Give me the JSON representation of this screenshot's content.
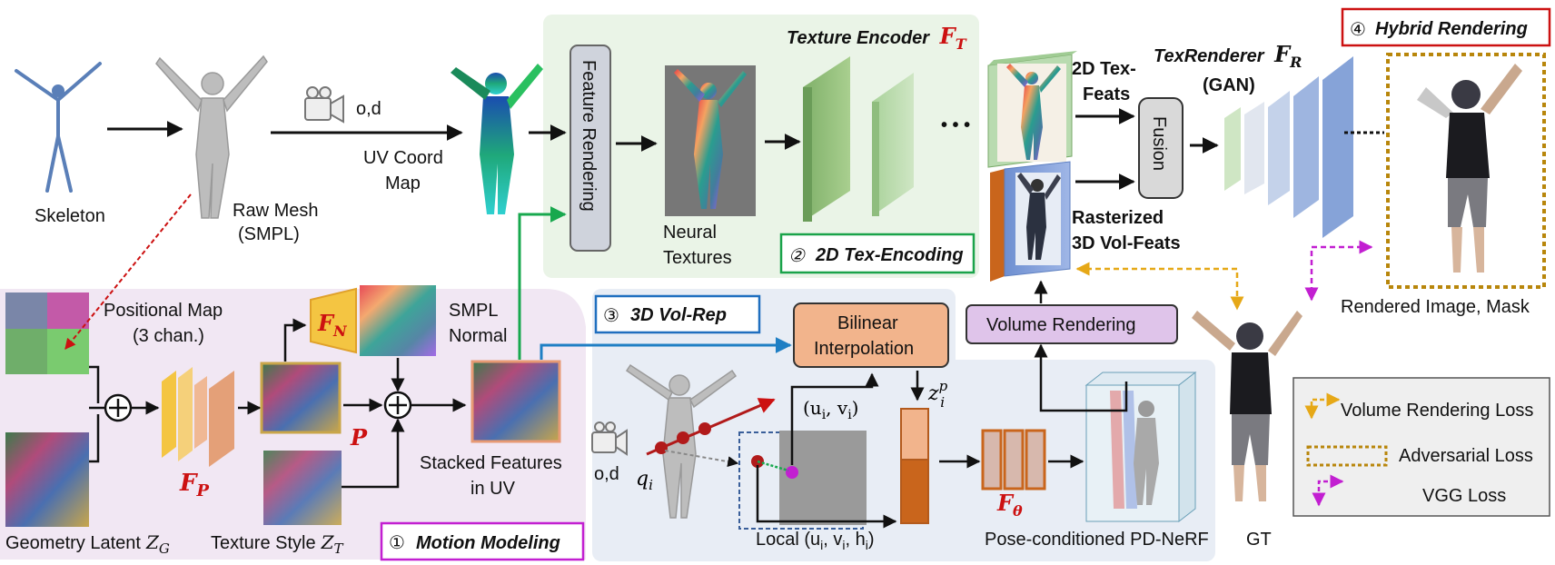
{
  "labels": {
    "skeleton": "Skeleton",
    "raw_mesh_1": "Raw Mesh",
    "raw_mesh_2": "(SMPL)",
    "od_top": "o,d",
    "uv_coord_1": "UV Coord",
    "uv_coord_2": "Map",
    "feature_rendering": "Feature Rendering",
    "neural_textures_1": "Neural",
    "neural_textures_2": "Textures",
    "texture_encoder": "Texture Encoder",
    "texture_encoder_sym": "F",
    "texture_encoder_sub": "T",
    "tex_2d_encoding_num": "②",
    "tex_2d_encoding": "2D Tex-Encoding",
    "ellipsis": "• • •",
    "tex_feats_1": "2D Tex-",
    "tex_feats_2": "Feats",
    "rasterized_1": "Rasterized",
    "rasterized_2": "3D Vol-Feats",
    "fusion": "Fusion",
    "texrenderer": "TexRenderer",
    "texrenderer_sym": "F",
    "texrenderer_sub": "R",
    "gan": "(GAN)",
    "hybrid_num": "④",
    "hybrid": "Hybrid Rendering",
    "rendered": "Rendered Image, Mask",
    "gt": "GT",
    "positional_map_1": "Positional Map",
    "positional_map_2": "(3 chan.)",
    "fn_sym": "F",
    "fn_sub": "N",
    "smpl_normal_1": "SMPL",
    "smpl_normal_2": "Normal",
    "fp_sym": "F",
    "fp_sub": "P",
    "p_sym": "P",
    "stacked_1": "Stacked Features",
    "stacked_2": "in UV",
    "geometry_latent": "Geometry Latent",
    "geometry_latent_sym": "Z",
    "geometry_latent_sub": "G",
    "texture_style": "Texture Style",
    "texture_style_sym": "Z",
    "texture_style_sub": "T",
    "motion_num": "①",
    "motion": "Motion Modeling",
    "vol_rep_num": "③",
    "vol_rep": "3D Vol-Rep",
    "bilinear_1": "Bilinear",
    "bilinear_2": "Interpolation",
    "volume_rendering": "Volume Rendering",
    "uv_coords": "(u",
    "uv_coords_i": "i",
    "uv_coords_mid": ", v",
    "uv_coords_end": ")",
    "z_sym": "z",
    "z_sup": "p",
    "z_sub": "i",
    "q_sym": "q",
    "q_sub": "i",
    "od_bottom": "o,d",
    "local": "Local (u",
    "local_rest": ", v",
    "local_h": ", h",
    "local_end": ")",
    "ftheta_sym": "F",
    "ftheta_sub": "θ",
    "pd_nerf": "Pose-conditioned PD-NeRF"
  },
  "legend": {
    "volume_loss": "Volume Rendering Loss",
    "adversarial_loss": "Adversarial Loss",
    "vgg_loss": "VGG Loss"
  },
  "colors": {
    "red": "#cc1111",
    "green": "#1aa34a",
    "blue": "#1f6fbf",
    "magenta": "#c21fd1",
    "gold": "#e6a817",
    "brown": "#b8860b",
    "teal_arrow": "#18a84e",
    "blue_arrow": "#1f7fc4"
  }
}
